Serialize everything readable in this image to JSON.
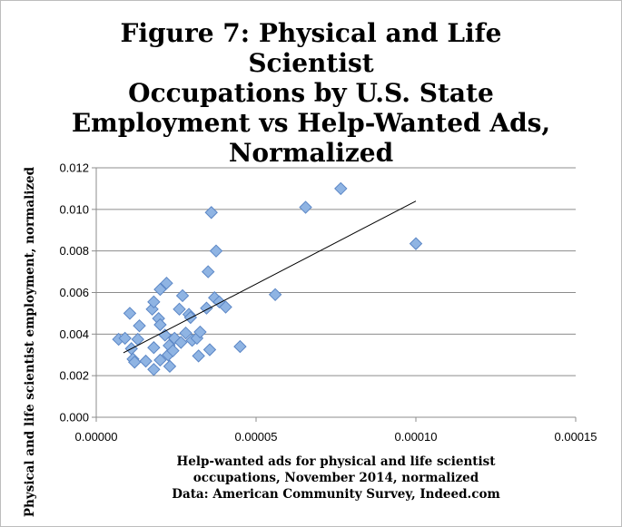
{
  "chart_data": {
    "type": "scatter",
    "title_lines": [
      "Figure 7: Physical and Life Scientist",
      "Occupations by U.S. State",
      "Employment vs Help-Wanted Ads,",
      "Normalized"
    ],
    "ylabel": "Physical and life scientist employment, normalized",
    "xlabel_lines": [
      "Help-wanted ads for physical and life scientist",
      "occupations, November 2014, normalized",
      "Data: American Community Survey, Indeed.com"
    ],
    "xlim": [
      0,
      0.00015
    ],
    "ylim": [
      0,
      0.012
    ],
    "x_ticks": [
      "0.00000",
      "0.00005",
      "0.00010",
      "0.00015"
    ],
    "y_ticks": [
      "0.000",
      "0.002",
      "0.004",
      "0.006",
      "0.008",
      "0.010",
      "0.012"
    ],
    "x_tick_values": [
      0,
      5e-05,
      0.0001,
      0.00015
    ],
    "y_tick_values": [
      0,
      0.002,
      0.004,
      0.006,
      0.008,
      0.01,
      0.012
    ],
    "grid": "horizontal",
    "legend": "none",
    "marker_color": "#8fb4e3",
    "marker_edge_color": "#5b86c5",
    "trendline": {
      "x": [
        8.5e-06,
        0.0001
      ],
      "y": [
        0.0031,
        0.0104
      ]
    },
    "points": [
      [
        7e-06,
        0.00375
      ],
      [
        9e-06,
        0.0038
      ],
      [
        1.05e-05,
        0.005
      ],
      [
        1.1e-05,
        0.0033
      ],
      [
        1.15e-05,
        0.0028
      ],
      [
        1.2e-05,
        0.00265
      ],
      [
        1.3e-05,
        0.00375
      ],
      [
        1.35e-05,
        0.0044
      ],
      [
        1.55e-05,
        0.0027
      ],
      [
        1.75e-05,
        0.0052
      ],
      [
        1.8e-05,
        0.00555
      ],
      [
        1.8e-05,
        0.00335
      ],
      [
        1.8e-05,
        0.0023
      ],
      [
        1.95e-05,
        0.00475
      ],
      [
        2e-05,
        0.00445
      ],
      [
        2e-05,
        0.00615
      ],
      [
        2e-05,
        0.00275
      ],
      [
        2.15e-05,
        0.00395
      ],
      [
        2.2e-05,
        0.00645
      ],
      [
        2.25e-05,
        0.003
      ],
      [
        2.28e-05,
        0.00345
      ],
      [
        2.3e-05,
        0.00245
      ],
      [
        2.4e-05,
        0.0032
      ],
      [
        2.45e-05,
        0.0038
      ],
      [
        2.6e-05,
        0.0052
      ],
      [
        2.65e-05,
        0.0036
      ],
      [
        2.7e-05,
        0.00585
      ],
      [
        2.8e-05,
        0.00405
      ],
      [
        2.9e-05,
        0.00495
      ],
      [
        2.95e-05,
        0.0048
      ],
      [
        3e-05,
        0.0037
      ],
      [
        3.15e-05,
        0.0038
      ],
      [
        3.2e-05,
        0.00295
      ],
      [
        3.25e-05,
        0.0041
      ],
      [
        3.45e-05,
        0.00525
      ],
      [
        3.5e-05,
        0.007
      ],
      [
        3.55e-05,
        0.00325
      ],
      [
        3.6e-05,
        0.00985
      ],
      [
        3.7e-05,
        0.00575
      ],
      [
        3.75e-05,
        0.008
      ],
      [
        3.85e-05,
        0.00555
      ],
      [
        4.05e-05,
        0.0053
      ],
      [
        4.5e-05,
        0.0034
      ],
      [
        5.6e-05,
        0.0059
      ],
      [
        6.55e-05,
        0.0101
      ],
      [
        7.65e-05,
        0.011
      ],
      [
        0.0001,
        0.00835
      ]
    ]
  }
}
